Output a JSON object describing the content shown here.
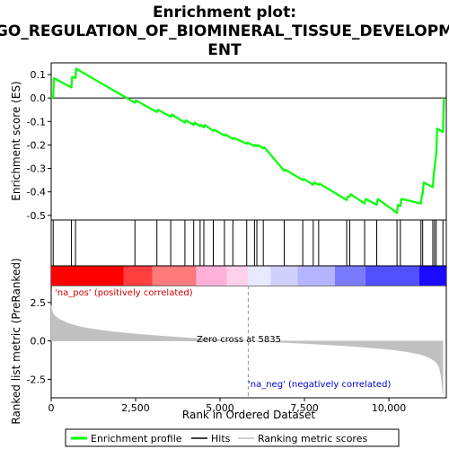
{
  "chart_data": {
    "type": "line",
    "title_lines": [
      "Enrichment plot:",
      "GO_REGULATION_OF_BIOMINERAL_TISSUE_DEVELOPM",
      "ENT"
    ],
    "xlabel": "Rank in Ordered Dataset",
    "xlim": [
      0,
      11700
    ],
    "x_ticks": [
      0,
      2500,
      5000,
      7500,
      10000
    ],
    "x_tick_labels": [
      "0",
      "2,500",
      "5,000",
      "7,500",
      "10,000"
    ],
    "es_panel": {
      "ylabel": "Enrichment score (ES)",
      "ylim": [
        -0.52,
        0.15
      ],
      "y_ticks": [
        0.1,
        0.0,
        -0.1,
        -0.2,
        -0.3,
        -0.4,
        -0.5
      ],
      "y_tick_labels": [
        "0.1",
        "0.0",
        "-0.1",
        "-0.2",
        "-0.3",
        "-0.4",
        "-0.5"
      ],
      "series": {
        "name": "Enrichment profile",
        "color": "#00ff00",
        "x": [
          0,
          60,
          80,
          600,
          620,
          720,
          740,
          2480,
          2510,
          3130,
          3160,
          3540,
          3570,
          3960,
          3990,
          4220,
          4250,
          4410,
          4440,
          4520,
          4550,
          4800,
          4830,
          5130,
          5160,
          5380,
          5410,
          5790,
          5820,
          6020,
          6050,
          6090,
          6120,
          6280,
          6310,
          6900,
          6930,
          7450,
          7480,
          7760,
          7790,
          7920,
          7950,
          8750,
          8780,
          8840,
          8870,
          9280,
          9310,
          9640,
          9670,
          10240,
          10270,
          10340,
          10370,
          10950,
          10980,
          11000,
          11030,
          11300,
          11330,
          11350,
          11380,
          11400,
          11430,
          11600,
          11630
        ],
        "y": [
          0.0,
          0.005,
          0.085,
          0.045,
          0.09,
          0.085,
          0.125,
          -0.02,
          -0.01,
          -0.06,
          -0.05,
          -0.08,
          -0.07,
          -0.105,
          -0.095,
          -0.115,
          -0.105,
          -0.12,
          -0.115,
          -0.125,
          -0.115,
          -0.14,
          -0.135,
          -0.16,
          -0.155,
          -0.175,
          -0.17,
          -0.195,
          -0.19,
          -0.205,
          -0.2,
          -0.205,
          -0.2,
          -0.215,
          -0.21,
          -0.31,
          -0.305,
          -0.35,
          -0.345,
          -0.37,
          -0.36,
          -0.37,
          -0.365,
          -0.435,
          -0.42,
          -0.42,
          -0.41,
          -0.45,
          -0.43,
          -0.455,
          -0.43,
          -0.49,
          -0.455,
          -0.46,
          -0.43,
          -0.45,
          -0.41,
          -0.41,
          -0.36,
          -0.38,
          -0.32,
          -0.3,
          -0.26,
          -0.24,
          -0.13,
          -0.145,
          0.0
        ]
      },
      "zero_line_color": "#000000"
    },
    "hits": {
      "name": "Hits",
      "color": "#000000",
      "x": [
        60,
        600,
        720,
        2480,
        3130,
        3540,
        3960,
        4220,
        4410,
        4520,
        4800,
        5130,
        5380,
        5790,
        6020,
        6090,
        6280,
        6900,
        7450,
        7760,
        7920,
        8750,
        8840,
        9280,
        9640,
        10240,
        10340,
        10950,
        11000,
        11300,
        11350,
        11400,
        11600
      ]
    },
    "color_band": {
      "segments": [
        {
          "from": 0,
          "to": 2150,
          "color": "#ff0000"
        },
        {
          "from": 2150,
          "to": 3000,
          "color": "#ff3e3e"
        },
        {
          "from": 3000,
          "to": 4300,
          "color": "#ff7a7a"
        },
        {
          "from": 4300,
          "to": 5200,
          "color": "#ffb0d8"
        },
        {
          "from": 5200,
          "to": 5835,
          "color": "#ffd0ec"
        },
        {
          "from": 5835,
          "to": 6500,
          "color": "#e8e8ff"
        },
        {
          "from": 6500,
          "to": 7300,
          "color": "#d0d0ff"
        },
        {
          "from": 7300,
          "to": 8400,
          "color": "#b4b4ff"
        },
        {
          "from": 8400,
          "to": 9300,
          "color": "#7a7aff"
        },
        {
          "from": 9300,
          "to": 10900,
          "color": "#5050ff"
        },
        {
          "from": 10900,
          "to": 11700,
          "color": "#1a0aff"
        }
      ]
    },
    "metric_panel": {
      "ylabel": "Ranked list metric (PreRanked)",
      "ylim": [
        -3.7,
        3.6
      ],
      "y_ticks": [
        2.5,
        0.0,
        -2.5
      ],
      "y_tick_labels": [
        "2.5",
        "0.0",
        "-2.5"
      ],
      "series": {
        "name": "Ranking metric scores",
        "color": "#c0c0c0",
        "x": [
          0,
          30,
          100,
          250,
          500,
          800,
          1200,
          1800,
          2500,
          3200,
          4000,
          4800,
          5500,
          5835,
          6500,
          7500,
          8500,
          9300,
          10000,
          10500,
          10900,
          11100,
          11250,
          11350,
          11450,
          11500,
          11540,
          11570,
          11600
        ],
        "y": [
          2.3,
          1.9,
          1.65,
          1.4,
          1.15,
          0.95,
          0.78,
          0.6,
          0.45,
          0.33,
          0.2,
          0.1,
          0.03,
          0.0,
          -0.06,
          -0.17,
          -0.29,
          -0.41,
          -0.55,
          -0.69,
          -0.86,
          -1.0,
          -1.15,
          -1.3,
          -1.55,
          -1.8,
          -2.2,
          -2.8,
          -3.5
        ]
      },
      "label_pos": "'na_pos' (positively correlated)",
      "label_neg": "'na_neg' (negatively correlated)",
      "zero_cross_text": "Zero cross at 5835",
      "zero_cross_x": 5835
    },
    "legend": {
      "placement": "bottom",
      "items": [
        {
          "label": "Enrichment profile",
          "color": "#00ff00",
          "style": "thick-line"
        },
        {
          "label": "Hits",
          "color": "#000000",
          "style": "line"
        },
        {
          "label": "Ranking metric scores",
          "color": "#c0c0c0",
          "style": "line"
        }
      ]
    }
  }
}
